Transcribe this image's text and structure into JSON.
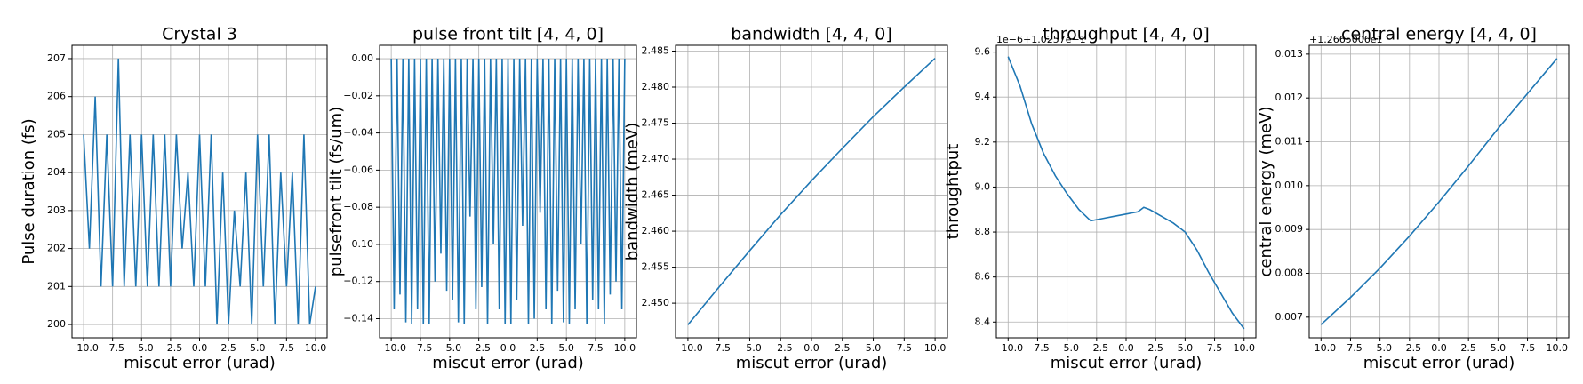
{
  "chart_data": [
    {
      "type": "line",
      "title": "Crystal 3",
      "xlabel": "miscut error (urad)",
      "ylabel": "Pulse duration (fs)",
      "grid": true,
      "color": "#1f77b4",
      "x": [
        -10,
        -9.5,
        -9,
        -8.5,
        -8,
        -7.5,
        -7,
        -6.5,
        -6,
        -5.5,
        -5,
        -4.5,
        -4,
        -3.5,
        -3,
        -2.5,
        -2,
        -1.5,
        -1,
        -0.5,
        0,
        0.5,
        1,
        1.5,
        2,
        2.5,
        3,
        3.5,
        4,
        4.5,
        5,
        5.5,
        6,
        6.5,
        7,
        7.5,
        8,
        8.5,
        9,
        9.5,
        10
      ],
      "values": [
        205,
        202,
        206,
        201,
        205,
        201,
        207,
        201,
        205,
        201,
        205,
        201,
        205,
        201,
        205,
        201,
        205,
        202,
        204,
        201,
        205,
        201,
        205,
        200,
        204,
        200,
        203,
        201,
        204,
        200,
        205,
        201,
        205,
        200,
        204,
        201,
        204,
        200,
        205,
        200,
        201
      ],
      "xlim": [
        -11,
        11
      ],
      "ylim": [
        199.65,
        207.35
      ],
      "xticks": [
        {
          "value": -10,
          "label": "−10.0"
        },
        {
          "value": -7.5,
          "label": "−7.5"
        },
        {
          "value": -5,
          "label": "−5.0"
        },
        {
          "value": -2.5,
          "label": "−2.5"
        },
        {
          "value": 0,
          "label": "0.0"
        },
        2.5,
        {
          "value": 5,
          "label": "5.0"
        },
        7.5,
        {
          "value": 10,
          "label": "10.0"
        }
      ],
      "yticks": [
        200,
        201,
        202,
        203,
        204,
        205,
        206,
        207
      ]
    },
    {
      "type": "line",
      "title": "pulse front tilt [4, 4, 0]",
      "xlabel": "miscut error (urad)",
      "ylabel": "pulsefront tilt (fs/um)",
      "grid": true,
      "color": "#1f77b4",
      "x": [
        -10,
        -9.75,
        -9.5,
        -9.25,
        -9,
        -8.75,
        -8.5,
        -8.25,
        -8,
        -7.75,
        -7.5,
        -7.25,
        -7,
        -6.75,
        -6.5,
        -6.25,
        -6,
        -5.75,
        -5.5,
        -5.25,
        -5,
        -4.75,
        -4.5,
        -4.25,
        -4,
        -3.75,
        -3.5,
        -3.25,
        -3,
        -2.75,
        -2.5,
        -2.25,
        -2,
        -1.75,
        -1.5,
        -1.25,
        -1,
        -0.75,
        -0.5,
        -0.25,
        0,
        0.25,
        0.5,
        0.75,
        1,
        1.25,
        1.5,
        1.75,
        2,
        2.25,
        2.5,
        2.75,
        3,
        3.25,
        3.5,
        3.75,
        4,
        4.25,
        4.5,
        4.75,
        5,
        5.25,
        5.5,
        5.75,
        6,
        6.25,
        6.5,
        6.75,
        7,
        7.25,
        7.5,
        7.75,
        8,
        8.25,
        8.5,
        8.75,
        9,
        9.25,
        9.5,
        9.75,
        10
      ],
      "values": [
        0,
        -0.135,
        0,
        -0.127,
        0,
        -0.142,
        0,
        -0.143,
        0,
        -0.135,
        0,
        -0.143,
        0,
        -0.143,
        0,
        -0.12,
        0,
        -0.105,
        0,
        -0.125,
        0,
        -0.13,
        0,
        -0.142,
        0,
        -0.143,
        0,
        -0.085,
        0,
        -0.135,
        0,
        -0.123,
        0,
        -0.143,
        0,
        -0.1,
        0,
        -0.135,
        0,
        -0.143,
        0,
        -0.143,
        0,
        -0.13,
        0,
        -0.09,
        0,
        -0.143,
        0,
        -0.14,
        0,
        -0.083,
        0,
        -0.135,
        0,
        -0.143,
        0,
        -0.125,
        0,
        -0.142,
        0,
        -0.143,
        0,
        -0.135,
        0,
        -0.1,
        0,
        -0.143,
        0,
        -0.13,
        0,
        -0.135,
        0,
        -0.143,
        0,
        -0.127,
        0,
        -0.12,
        0,
        -0.135,
        0
      ],
      "xlim": [
        -11,
        11
      ],
      "ylim": [
        -0.1503,
        0.0072
      ],
      "xticks": [
        {
          "value": -10,
          "label": "−10.0"
        },
        {
          "value": -7.5,
          "label": "−7.5"
        },
        {
          "value": -5,
          "label": "−5.0"
        },
        {
          "value": -2.5,
          "label": "−2.5"
        },
        {
          "value": 0,
          "label": "0.0"
        },
        2.5,
        {
          "value": 5,
          "label": "5.0"
        },
        7.5,
        {
          "value": 10,
          "label": "10.0"
        }
      ],
      "yticks": [
        {
          "value": 0,
          "label": "0.00"
        },
        {
          "value": -0.02,
          "label": "−0.02"
        },
        {
          "value": -0.04,
          "label": "−0.04"
        },
        {
          "value": -0.06,
          "label": "−0.06"
        },
        {
          "value": -0.08,
          "label": "−0.08"
        },
        {
          "value": -0.1,
          "label": "−0.10"
        },
        {
          "value": -0.12,
          "label": "−0.12"
        },
        {
          "value": -0.14,
          "label": "−0.14"
        }
      ]
    },
    {
      "type": "line",
      "title": "bandwidth [4, 4, 0]",
      "xlabel": "miscut error (urad)",
      "ylabel": "bandwidth (meV)",
      "grid": true,
      "color": "#1f77b4",
      "x": [
        -10,
        -7.5,
        -5,
        -2.5,
        0,
        2.5,
        5,
        7.5,
        10
      ],
      "values": [
        2.447,
        2.4522,
        2.4573,
        2.4623,
        2.467,
        2.4715,
        2.4759,
        2.48,
        2.484
      ],
      "xlim": [
        -11,
        11
      ],
      "ylim": [
        2.4452,
        2.4858
      ],
      "xticks": [
        {
          "value": -10,
          "label": "−10.0"
        },
        {
          "value": -7.5,
          "label": "−7.5"
        },
        {
          "value": -5,
          "label": "−5.0"
        },
        {
          "value": -2.5,
          "label": "−2.5"
        },
        {
          "value": 0,
          "label": "0.0"
        },
        2.5,
        {
          "value": 5,
          "label": "5.0"
        },
        7.5,
        {
          "value": 10,
          "label": "10.0"
        }
      ],
      "yticks": [
        {
          "value": 2.45,
          "label": "2.450"
        },
        2.455,
        {
          "value": 2.46,
          "label": "2.460"
        },
        2.465,
        {
          "value": 2.47,
          "label": "2.470"
        },
        2.475,
        {
          "value": 2.48,
          "label": "2.480"
        },
        2.485
      ]
    },
    {
      "type": "line",
      "title": "throughput [4, 4, 0]",
      "xlabel": "miscut error (urad)",
      "ylabel": "throughtput",
      "offset_text": "1e−6+1.0257e−1",
      "grid": true,
      "color": "#1f77b4",
      "x": [
        -10,
        -9,
        -8,
        -7,
        -6,
        -5,
        -4,
        -3,
        -2,
        -1,
        0,
        1,
        1.5,
        2,
        3,
        4,
        5,
        6,
        7,
        8,
        9,
        10
      ],
      "values": [
        9.58,
        9.45,
        9.28,
        9.15,
        9.05,
        8.97,
        8.9,
        8.85,
        8.86,
        8.87,
        8.88,
        8.89,
        8.91,
        8.9,
        8.87,
        8.84,
        8.8,
        8.72,
        8.62,
        8.53,
        8.44,
        8.37
      ],
      "xlim": [
        -11,
        11
      ],
      "ylim": [
        8.33,
        9.63
      ],
      "xticks": [
        {
          "value": -10,
          "label": "−10.0"
        },
        {
          "value": -7.5,
          "label": "−7.5"
        },
        {
          "value": -5,
          "label": "−5.0"
        },
        {
          "value": -2.5,
          "label": "−2.5"
        },
        {
          "value": 0,
          "label": "0.0"
        },
        2.5,
        {
          "value": 5,
          "label": "5.0"
        },
        7.5,
        {
          "value": 10,
          "label": "10.0"
        }
      ],
      "yticks": [
        8.4,
        8.6,
        8.8,
        {
          "value": 9,
          "label": "9.0"
        },
        9.2,
        9.4,
        9.6
      ]
    },
    {
      "type": "line",
      "title": "central energy [4, 4, 0]",
      "xlabel": "miscut error (urad)",
      "ylabel": "central energy (meV)",
      "offset_text": "+1.2665006e1",
      "grid": true,
      "color": "#1f77b4",
      "x": [
        -10,
        -7.5,
        -5,
        -2.5,
        0,
        2.5,
        5,
        7.5,
        10
      ],
      "values": [
        0.00683,
        0.00745,
        0.00812,
        0.00885,
        0.00963,
        0.01045,
        0.0113,
        0.0121,
        0.0129
      ],
      "xlim": [
        -11,
        11
      ],
      "ylim": [
        0.00653,
        0.0132
      ],
      "xticks": [
        {
          "value": -10,
          "label": "−10.0"
        },
        {
          "value": -7.5,
          "label": "−7.5"
        },
        {
          "value": -5,
          "label": "−5.0"
        },
        {
          "value": -2.5,
          "label": "−2.5"
        },
        {
          "value": 0,
          "label": "0.0"
        },
        2.5,
        {
          "value": 5,
          "label": "5.0"
        },
        7.5,
        {
          "value": 10,
          "label": "10.0"
        }
      ],
      "yticks": [
        0.007,
        0.008,
        0.009,
        {
          "value": 0.01,
          "label": "0.010"
        },
        0.011,
        0.012,
        0.013
      ]
    }
  ]
}
